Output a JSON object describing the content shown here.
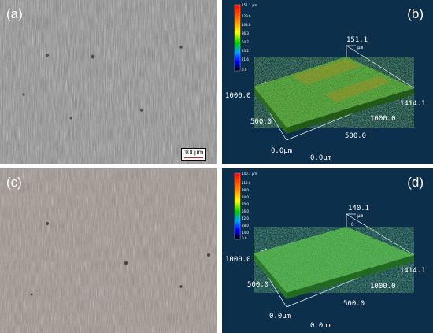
{
  "panels": [
    {
      "label": "(a)"
    },
    {
      "label": "(b)",
      "unit_top": "151.1 µm",
      "legend": [
        "151.1 µm",
        "129.6",
        "108.0",
        "86.3",
        "64.7",
        "43.2",
        "21.6",
        "0.0"
      ],
      "z_max": "151.1",
      "z_unit": "µm",
      "y_axis": [
        "1000.0",
        "500.0",
        "0.0µm"
      ],
      "x_axis": [
        "1414.1",
        "1000.0",
        "500.0",
        "0.0µm"
      ]
    },
    {
      "label": "(c)"
    },
    {
      "label": "(d)",
      "unit_top": "140.1 µm",
      "legend": [
        "140.1 µm",
        "112.0",
        "98.0",
        "84.0",
        "70.0",
        "56.0",
        "42.0",
        "28.0",
        "14.0",
        "0.0"
      ],
      "z_max": "140.1",
      "z_unit": "µm",
      "z_zero": "0",
      "y_axis": [
        "1000.0",
        "500.0",
        "0.0µm"
      ],
      "x_axis": [
        "1414.1",
        "1000.0",
        "500.0",
        "0.0µm"
      ]
    }
  ],
  "scale_bar_label": "100μm",
  "colors": {
    "plot_bg": "#0c2f4b",
    "surface_green": "#4f9a35",
    "surface_orange": "#9a8a2a"
  }
}
